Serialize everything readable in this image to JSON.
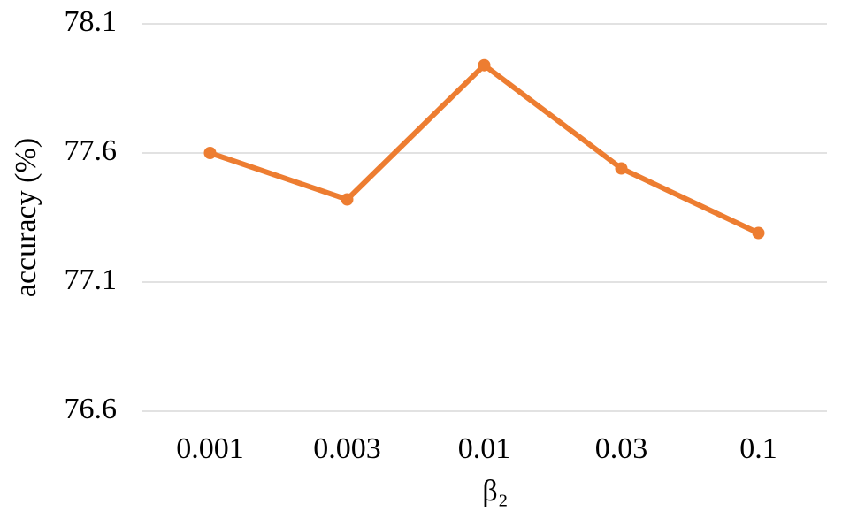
{
  "chart_data": {
    "type": "line",
    "x_label": "β₂",
    "y_label": "accuracy (%)",
    "categories": [
      "0.001",
      "0.003",
      "0.01",
      "0.03",
      "0.1"
    ],
    "values": [
      77.6,
      77.42,
      77.94,
      77.54,
      77.29
    ],
    "color": "#ed7d31",
    "ylim": [
      76.6,
      78.1
    ],
    "yticks": [
      76.6,
      77.1,
      77.6,
      78.1
    ],
    "grid": true
  }
}
